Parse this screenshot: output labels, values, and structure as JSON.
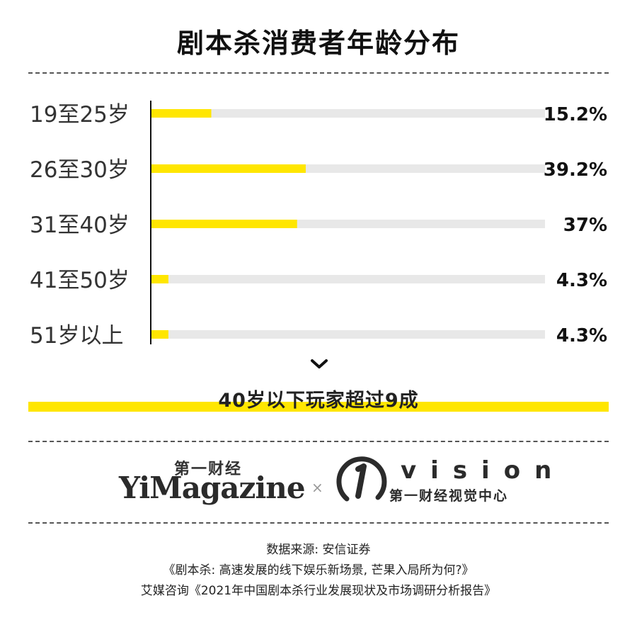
{
  "title": "剧本杀消费者年龄分布",
  "chart_data": {
    "type": "bar",
    "orientation": "horizontal",
    "categories": [
      "19至25岁",
      "26至30岁",
      "31至40岁",
      "41至50岁",
      "51岁以上"
    ],
    "values": [
      15.2,
      39.2,
      37,
      4.3,
      4.3
    ],
    "value_labels": [
      "15.2%",
      "39.2%",
      "37%",
      "4.3%",
      "4.3%"
    ],
    "xlim": [
      0,
      100
    ],
    "grid": false,
    "colors": {
      "bar": "#ffe600",
      "track": "#e8e8e8",
      "axis": "#111111"
    }
  },
  "conclusion": "40岁以下玩家超过9成",
  "icons": {
    "chevron": "chevron-down-icon"
  },
  "logos": {
    "yimagazine_cn": "第一财经",
    "yimagazine_en": "YiMagazine",
    "separator": "×",
    "vision_en": "vision",
    "vision_cn": "第一财经视觉中心"
  },
  "source": {
    "line1": "数据来源: 安信证券",
    "line2": "《剧本杀: 高速发展的线下娱乐新场景, 芒果入局所为何?》",
    "line3": "艾媒咨询《2021年中国剧本杀行业发展现状及市场调研分析报告》"
  }
}
